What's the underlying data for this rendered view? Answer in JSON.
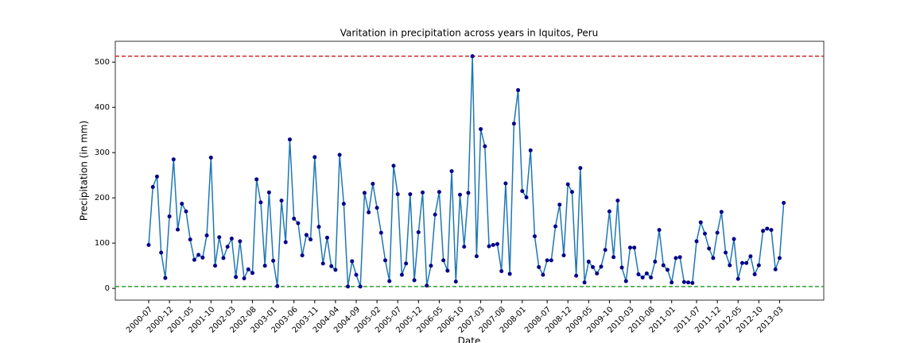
{
  "chart_data": {
    "type": "line",
    "title": "Varitation in precipitation across years in Iquitos, Peru",
    "x_label": "Date",
    "y_label": "Precipitation (in mm)",
    "x": [
      "2000-07",
      "2000-08",
      "2000-09",
      "2000-10",
      "2000-11",
      "2000-12",
      "2001-01",
      "2001-02",
      "2001-03",
      "2001-04",
      "2001-05",
      "2001-06",
      "2001-07",
      "2001-08",
      "2001-09",
      "2001-10",
      "2001-11",
      "2001-12",
      "2002-01",
      "2002-02",
      "2002-03",
      "2002-04",
      "2002-05",
      "2002-06",
      "2002-07",
      "2002-08",
      "2002-09",
      "2002-10",
      "2002-11",
      "2002-12",
      "2003-01",
      "2003-02",
      "2003-03",
      "2003-04",
      "2003-05",
      "2003-06",
      "2003-07",
      "2003-08",
      "2003-09",
      "2003-10",
      "2003-11",
      "2003-12",
      "2004-01",
      "2004-02",
      "2004-03",
      "2004-04",
      "2004-05",
      "2004-06",
      "2004-07",
      "2004-08",
      "2004-09",
      "2004-10",
      "2004-11",
      "2004-12",
      "2005-01",
      "2005-02",
      "2005-03",
      "2005-04",
      "2005-05",
      "2005-06",
      "2005-07",
      "2005-08",
      "2005-09",
      "2005-10",
      "2005-11",
      "2005-12",
      "2006-01",
      "2006-02",
      "2006-03",
      "2006-04",
      "2006-05",
      "2006-06",
      "2006-07",
      "2006-08",
      "2006-09",
      "2006-10",
      "2006-11",
      "2006-12",
      "2007-01",
      "2007-02",
      "2007-03",
      "2007-04",
      "2007-05",
      "2007-06",
      "2007-07",
      "2007-08",
      "2007-09",
      "2007-10",
      "2007-11",
      "2007-12",
      "2008-01",
      "2008-02",
      "2008-03",
      "2008-04",
      "2008-05",
      "2008-06",
      "2008-07",
      "2008-08",
      "2008-09",
      "2008-10",
      "2008-11",
      "2008-12",
      "2009-01",
      "2009-02",
      "2009-03",
      "2009-04",
      "2009-05",
      "2009-06",
      "2009-07",
      "2009-08",
      "2009-09",
      "2009-10",
      "2009-11",
      "2009-12",
      "2010-01",
      "2010-02",
      "2010-03",
      "2010-04",
      "2010-05",
      "2010-06",
      "2010-07",
      "2010-08",
      "2010-09",
      "2010-10",
      "2010-11",
      "2010-12",
      "2011-01",
      "2011-02",
      "2011-03",
      "2011-04",
      "2011-05",
      "2011-06",
      "2011-07",
      "2011-08",
      "2011-09",
      "2011-10",
      "2011-11",
      "2011-12",
      "2012-01",
      "2012-02",
      "2012-03",
      "2012-04",
      "2012-05",
      "2012-06",
      "2012-07",
      "2012-08",
      "2012-09",
      "2012-10",
      "2012-11",
      "2012-12",
      "2013-01",
      "2013-02",
      "2013-03",
      "2013-04"
    ],
    "values": [
      96,
      224,
      247,
      79,
      23,
      159,
      285,
      130,
      187,
      170,
      108,
      63,
      74,
      68,
      117,
      289,
      50,
      113,
      67,
      92,
      110,
      25,
      104,
      22,
      42,
      34,
      241,
      190,
      50,
      212,
      61,
      5,
      194,
      102,
      329,
      154,
      144,
      73,
      118,
      108,
      290,
      136,
      55,
      112,
      49,
      41,
      295,
      187,
      4,
      60,
      30,
      4,
      211,
      168,
      231,
      178,
      123,
      62,
      16,
      271,
      208,
      30,
      55,
      208,
      18,
      124,
      212,
      6,
      50,
      163,
      213,
      62,
      39,
      259,
      15,
      207,
      92,
      211,
      513,
      71,
      352,
      314,
      93,
      96,
      98,
      38,
      232,
      32,
      364,
      438,
      215,
      201,
      305,
      115,
      47,
      30,
      62,
      62,
      137,
      185,
      73,
      230,
      213,
      28,
      266,
      13,
      59,
      47,
      33,
      48,
      85,
      170,
      69,
      194,
      46,
      16,
      90,
      90,
      31,
      24,
      33,
      24,
      59,
      129,
      51,
      41,
      13,
      67,
      69,
      14,
      13,
      12,
      104,
      146,
      121,
      88,
      67,
      123,
      169,
      79,
      51,
      109,
      21,
      56,
      56,
      71,
      31,
      51,
      127,
      132,
      129,
      42,
      67,
      189
    ],
    "color": "#1f77b4",
    "marker_color": "#00008b",
    "hlines": [
      {
        "value": 513,
        "color": "#d62728"
      },
      {
        "value": 4,
        "color": "#2ca02c"
      }
    ],
    "xticks": [
      "2000-07",
      "2000-12",
      "2001-05",
      "2001-10",
      "2002-03",
      "2002-08",
      "2003-01",
      "2003-06",
      "2003-11",
      "2004-04",
      "2004-09",
      "2005-02",
      "2005-07",
      "2005-12",
      "2006-05",
      "2006-10",
      "2007-03",
      "2007-08",
      "2008-01",
      "2008-07",
      "2008-12",
      "2009-05",
      "2009-10",
      "2010-03",
      "2010-08",
      "2011-01",
      "2011-07",
      "2011-12",
      "2012-05",
      "2012-10",
      "2013-03"
    ],
    "ylim": [
      -26,
      546
    ],
    "yticks": [
      0,
      100,
      200,
      300,
      400,
      500
    ]
  }
}
